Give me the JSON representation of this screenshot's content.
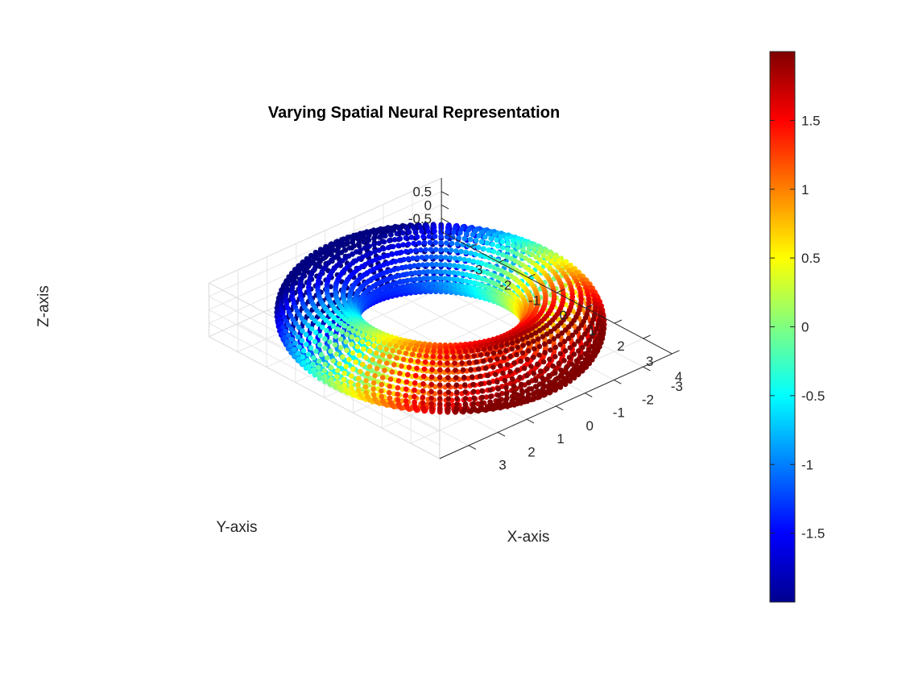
{
  "chart_data": {
    "type": "scatter3d",
    "title": "Varying Spatial Neural Representation",
    "xlabel": "X-axis",
    "ylabel": "Y-axis",
    "zlabel": "Z-axis",
    "xlim": [
      -4,
      4
    ],
    "ylim": [
      -4,
      4
    ],
    "zlim": [
      -1,
      1
    ],
    "x_ticks": [
      "-3",
      "-2",
      "-1",
      "0",
      "1",
      "2",
      "3",
      "4"
    ],
    "y_ticks": [
      "-3",
      "-2",
      "-1",
      "0",
      "1",
      "2",
      "3"
    ],
    "z_ticks": [
      "-0.5",
      "0",
      "0.5"
    ],
    "grid": true,
    "torus": {
      "major_radius": 3,
      "minor_radius": 1,
      "n_theta": 120,
      "n_phi": 28
    },
    "color_variable": "x / 1.5 (approx.)",
    "colormap": "jet",
    "colorbar": {
      "range": [
        -2,
        2
      ],
      "ticks": [
        "-1.5",
        "-1",
        "-0.5",
        "0",
        "0.5",
        "1",
        "1.5"
      ]
    }
  }
}
